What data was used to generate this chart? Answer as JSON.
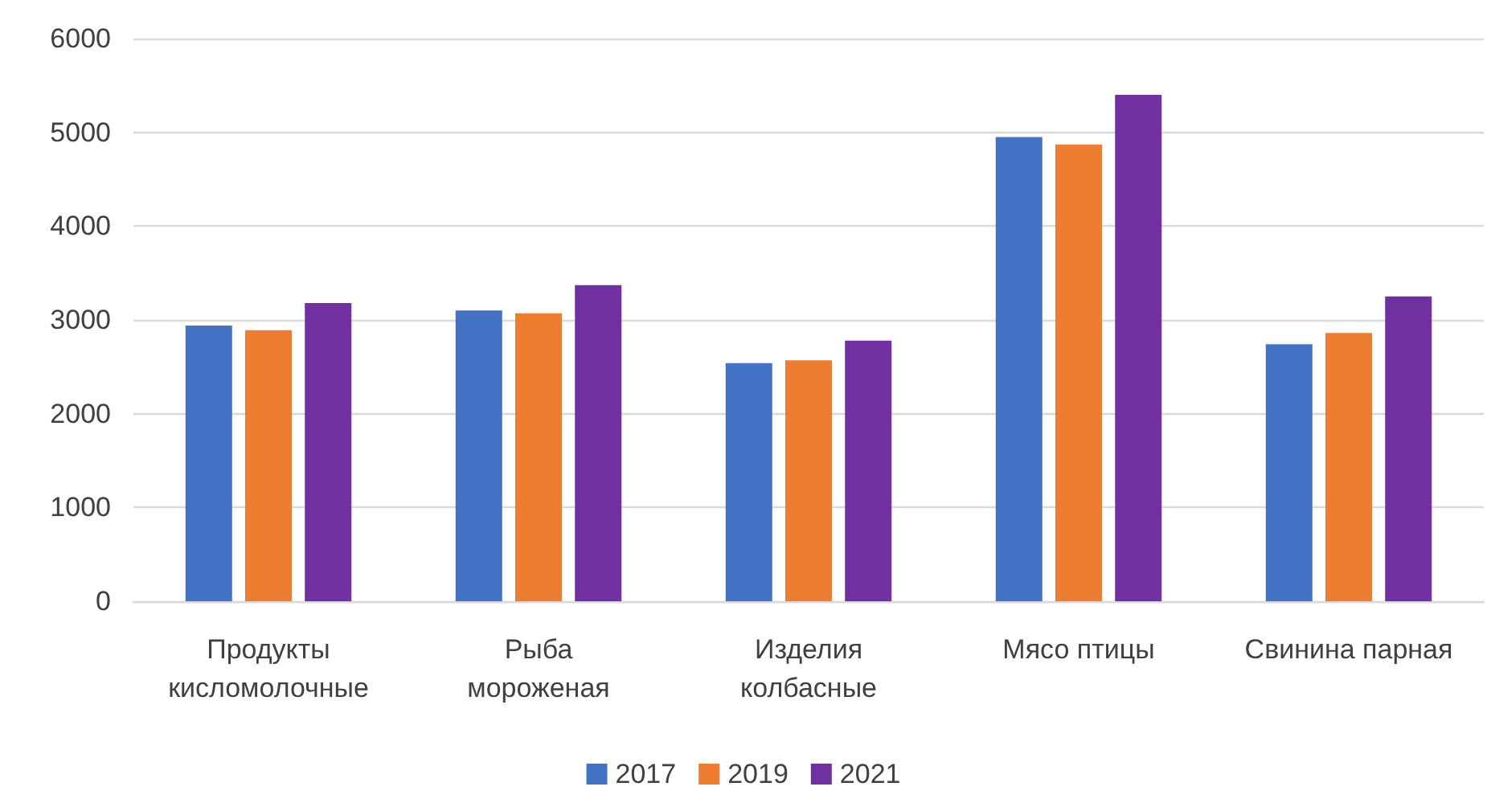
{
  "chart_data": {
    "type": "bar",
    "categories": [
      "Продукты кисломолочные",
      "Рыба мороженая",
      "Изделия колбасные",
      "Мясо птицы",
      "Свинина парная"
    ],
    "series": [
      {
        "name": "2017",
        "color": "#4472c4",
        "values": [
          2940,
          3100,
          2540,
          4950,
          2740
        ]
      },
      {
        "name": "2019",
        "color": "#ed7d31",
        "values": [
          2890,
          3070,
          2570,
          4870,
          2860
        ]
      },
      {
        "name": "2021",
        "color": "#7030a0",
        "values": [
          3180,
          3370,
          2780,
          5400,
          3250
        ]
      }
    ],
    "ylim": [
      0,
      6000
    ],
    "yticks": [
      0,
      1000,
      2000,
      3000,
      4000,
      5000,
      6000
    ],
    "grid": "y",
    "legend": "bottom"
  }
}
